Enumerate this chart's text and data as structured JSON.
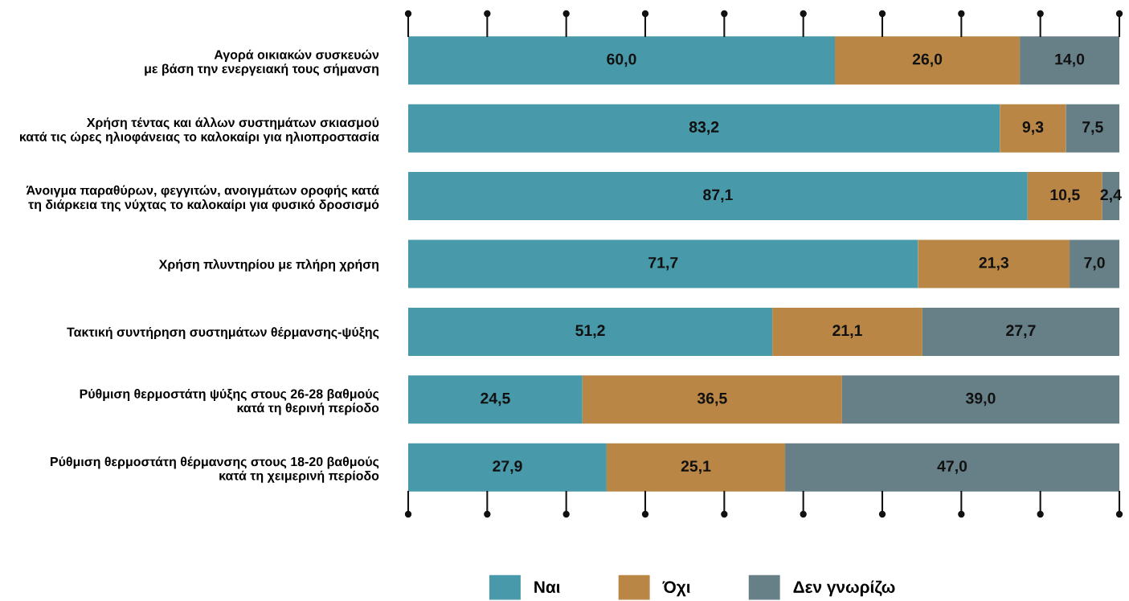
{
  "chart_data": {
    "type": "bar",
    "orientation": "horizontal",
    "stacked": true,
    "tick_labels": "y",
    "legend": "bottom",
    "grid": false,
    "categories": [
      "Αγορά οικιακών συσκευών\nμε βάση την ενεργειακή τους σήμανση",
      "Χρήση τέντας και άλλων συστημάτων σκιασμού\nκατά τις ώρες ηλιοφάνειας το καλοκαίρι για ηλιοπροστασία",
      "Άνοιγμα παραθύρων, φεγγιτών, ανοιγμάτων οροφής κατά\nτη διάρκεια της νύχτας το καλοκαίρι για φυσικό δροσισμό",
      "Χρήση πλυντηρίου με πλήρη χρήση",
      "Τακτική συντήρηση συστημάτων θέρμανσης-ψύξης",
      "Ρύθμιση θερμοστάτη ψύξης στους 26-28 βαθμούς\nκατά τη θερινή περίοδο",
      "Ρύθμιση θερμοστάτη θέρμανσης στους 18-20 βαθμούς\nκατά τη χειμερινή περίοδο"
    ],
    "series": [
      {
        "name": "Ναι",
        "color": "#4899a9",
        "values": [
          60.0,
          83.2,
          87.1,
          71.7,
          51.2,
          24.5,
          27.9
        ],
        "value_labels": [
          "60,0",
          "83,2",
          "87,1",
          "71,7",
          "51,2",
          "24,5",
          "27,9"
        ]
      },
      {
        "name": "Όχι",
        "color": "#b98645",
        "values": [
          26.0,
          9.3,
          10.5,
          21.3,
          21.1,
          36.5,
          25.1
        ],
        "value_labels": [
          "26,0",
          "9,3",
          "10,5",
          "21,3",
          "21,1",
          "36,5",
          "25,1"
        ]
      },
      {
        "name": "Δεν γνωρίζω",
        "color": "#677f86",
        "values": [
          14.0,
          7.5,
          2.4,
          7.0,
          27.7,
          39.0,
          47.0
        ],
        "value_labels": [
          "14,0",
          "7,5",
          "2,4",
          "7,0",
          "27,7",
          "39,0",
          "47,0"
        ]
      }
    ]
  }
}
